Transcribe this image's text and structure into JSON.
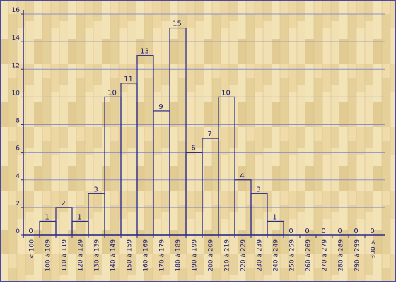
{
  "chart_data": {
    "type": "bar",
    "categories": [
      "< 100",
      "100 à 109",
      "110 à 119",
      "120 à 129",
      "130 à 139",
      "140 à 149",
      "150 à 159",
      "160 à 169",
      "170 à 179",
      "180 à 189",
      "190 à 199",
      "200 à 209",
      "210 à 219",
      "220 à 229",
      "230 à 239",
      "240 à 249",
      "250 à 259",
      "260 à 269",
      "270 à 279",
      "280 à 289",
      "290 à 299",
      "300 >"
    ],
    "values": [
      0,
      1,
      2,
      1,
      3,
      10,
      11,
      13,
      9,
      15,
      6,
      7,
      10,
      4,
      3,
      1,
      0,
      0,
      0,
      0,
      0,
      0
    ],
    "y_ticks": [
      0,
      2,
      4,
      6,
      8,
      10,
      12,
      14,
      16
    ],
    "ylim": [
      0,
      16
    ],
    "title": "",
    "xlabel": "",
    "ylabel": "",
    "grid": true,
    "data_labels": true,
    "background": "wood-parquet",
    "colors": {
      "bar_stroke": "#2b2a8a",
      "axis": "#2b2a8a",
      "grid": "#8f8fc8",
      "text": "#1f1f6e",
      "frame": "#4a4aa0",
      "wood_light": "#f1e1b0",
      "wood_mid": "#e8d49f",
      "wood_dark": "#dcc48a"
    }
  }
}
